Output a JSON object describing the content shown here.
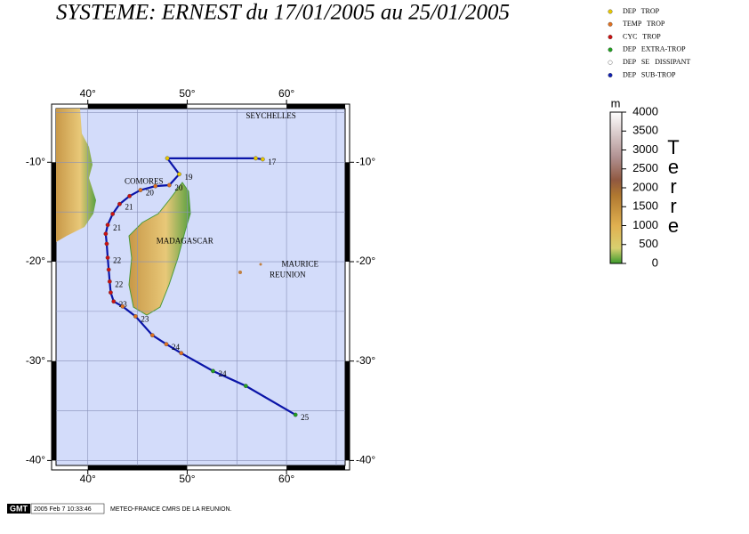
{
  "title": "SYSTEME: ERNEST du 17/01/2005 au 25/01/2005",
  "legend": [
    {
      "text": "DEP   TROP",
      "color": "#e8c800"
    },
    {
      "text": "TEMP   TROP",
      "color": "#e07020"
    },
    {
      "text": "CYC   TROP",
      "color": "#cc1010"
    },
    {
      "text": "DEP   EXTRA-TROP",
      "color": "#20a020"
    },
    {
      "text": "DEP   SE   DISSIPANT",
      "color": "#ffffff"
    },
    {
      "text": "DEP   SUB-TROP",
      "color": "#1020b0"
    }
  ],
  "map": {
    "lonlim": [
      36.8,
      65.9
    ],
    "latlim": [
      -4.6,
      -40.5
    ],
    "lonticks": [
      {
        "value": 40,
        "label": "40°"
      },
      {
        "value": 50,
        "label": "50°"
      },
      {
        "value": 60,
        "label": "60°"
      }
    ],
    "latticks": [
      {
        "value": -10,
        "label": "-10°"
      },
      {
        "value": -20,
        "label": "-20°"
      },
      {
        "value": -30,
        "label": "-30°"
      },
      {
        "value": -40,
        "label": "-40°"
      }
    ],
    "grid_lon": [
      40,
      45,
      50,
      55,
      60,
      65
    ],
    "grid_lat": [
      -5,
      -10,
      -15,
      -20,
      -25,
      -30,
      -35,
      -40
    ],
    "track_color": "#0a14a8",
    "places": [
      {
        "text": "SEYCHELLES",
        "lon": 55.9,
        "lat": -5.4
      },
      {
        "text": "COMORES",
        "lon": 43.7,
        "lat": -12.0
      },
      {
        "text": "MADAGASCAR",
        "lon": 46.9,
        "lat": -18.0
      },
      {
        "text": "MAURICE",
        "lon": 59.5,
        "lat": -20.3
      },
      {
        "text": "REUNION",
        "lon": 58.3,
        "lat": -21.4
      }
    ],
    "track": [
      {
        "lon": 57.6,
        "lat": -9.7,
        "color": "#e8c800",
        "label": "17"
      },
      {
        "lon": 56.9,
        "lat": -9.6,
        "color": "#e8c800"
      },
      {
        "lon": 48.0,
        "lat": -9.6,
        "color": "#e8c800"
      },
      {
        "lon": 49.2,
        "lat": -11.2,
        "color": "#e8c800",
        "label": "19"
      },
      {
        "lon": 48.2,
        "lat": -12.3,
        "color": "#e07020",
        "label": "20"
      },
      {
        "lon": 46.8,
        "lat": -12.4,
        "color": "#e07020"
      },
      {
        "lon": 45.3,
        "lat": -12.8,
        "color": "#e07020",
        "label": "20"
      },
      {
        "lon": 44.2,
        "lat": -13.4,
        "color": "#cc1010"
      },
      {
        "lon": 43.2,
        "lat": -14.2,
        "color": "#cc1010",
        "label": "21"
      },
      {
        "lon": 42.5,
        "lat": -15.2,
        "color": "#cc1010"
      },
      {
        "lon": 42.0,
        "lat": -16.3,
        "color": "#cc1010",
        "label": "21"
      },
      {
        "lon": 41.8,
        "lat": -17.2,
        "color": "#cc1010"
      },
      {
        "lon": 41.9,
        "lat": -18.2,
        "color": "#cc1010"
      },
      {
        "lon": 42.0,
        "lat": -19.6,
        "color": "#cc1010",
        "label": "22"
      },
      {
        "lon": 42.1,
        "lat": -20.8,
        "color": "#cc1010"
      },
      {
        "lon": 42.2,
        "lat": -22.0,
        "color": "#cc1010",
        "label": "22"
      },
      {
        "lon": 42.3,
        "lat": -23.1,
        "color": "#cc1010"
      },
      {
        "lon": 42.6,
        "lat": -24.0,
        "color": "#cc1010",
        "label": "23"
      },
      {
        "lon": 43.5,
        "lat": -24.5,
        "color": "#e07020"
      },
      {
        "lon": 44.8,
        "lat": -25.5,
        "color": "#e07020",
        "label": "23"
      },
      {
        "lon": 46.5,
        "lat": -27.4,
        "color": "#e07020"
      },
      {
        "lon": 47.9,
        "lat": -28.3,
        "color": "#e07020",
        "label": "24"
      },
      {
        "lon": 49.4,
        "lat": -29.2,
        "color": "#e07020"
      },
      {
        "lon": 52.6,
        "lat": -31.0,
        "color": "#20a020",
        "label": "24"
      },
      {
        "lon": 55.9,
        "lat": -32.5,
        "color": "#20a020"
      },
      {
        "lon": 60.9,
        "lat": -35.4,
        "color": "#20a020",
        "label": "25"
      }
    ]
  },
  "colorbar": {
    "unit": "m",
    "word": [
      "T",
      "e",
      "r",
      "r",
      "e"
    ],
    "lim": [
      0,
      4000
    ],
    "ticks": [
      0,
      500,
      1000,
      1500,
      2000,
      2500,
      3000,
      3500,
      4000
    ]
  },
  "footer": {
    "logo": "GMT",
    "date": "2005 Feb  7 10:33:46",
    "credit": "METEO-FRANCE CMRS DE LA REUNION."
  }
}
